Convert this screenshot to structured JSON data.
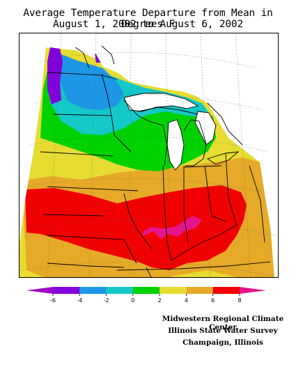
{
  "title": {
    "line1": "Average Temperature Departure from Mean in Degrees F",
    "line2": "August 1, 2002 to August 6, 2002"
  },
  "legend": {
    "tick_labels": [
      "-6",
      "-4",
      "-2",
      "0",
      "2",
      "4",
      "6",
      "8"
    ],
    "bins": [
      {
        "range": "< -6",
        "color": "#a000c8"
      },
      {
        "range": "-6 to -4",
        "color": "#8200dc"
      },
      {
        "range": "-4 to -2",
        "color": "#1e96e6"
      },
      {
        "range": "-2 to 0",
        "color": "#14c8c8"
      },
      {
        "range": "0 to 2",
        "color": "#00d200"
      },
      {
        "range": "2 to 4",
        "color": "#e6dc32"
      },
      {
        "range": "4 to 6",
        "color": "#e6aa28"
      },
      {
        "range": "6 to 8",
        "color": "#f00000"
      },
      {
        "range": "> 8",
        "color": "#e6148c"
      }
    ]
  },
  "credits": [
    "Midwestern Regional Climate Center",
    "Illinois State Water Survey",
    "Champaign, Illinois"
  ]
}
